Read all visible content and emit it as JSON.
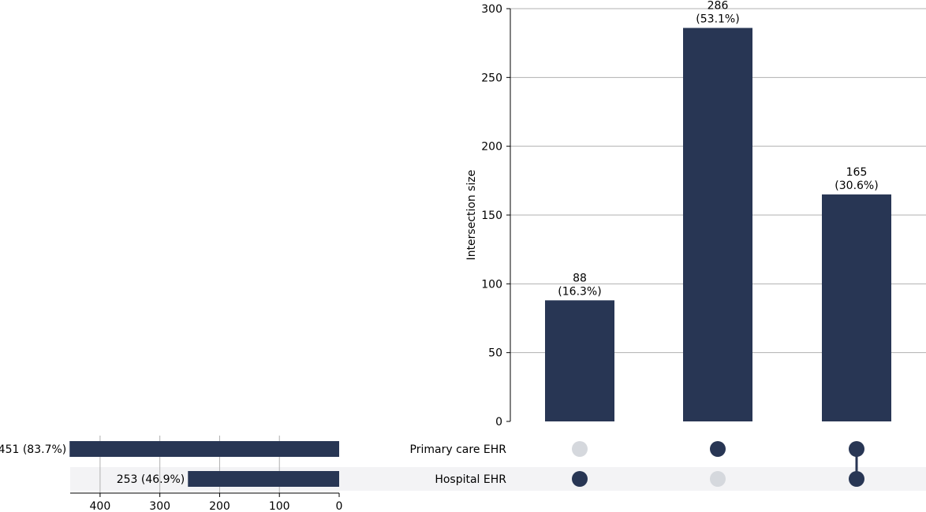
{
  "chart_data": {
    "type": "bar",
    "chart_kind": "upset",
    "ylabel": "Intersection size",
    "ylim": [
      0,
      300
    ],
    "yticks": [
      0,
      50,
      100,
      150,
      200,
      250,
      300
    ],
    "grid": true,
    "bar_color": "#283654",
    "inactive_dot_color": "#d5d8dd",
    "shading_color": "#f3f3f5",
    "sets": [
      {
        "name": "Primary care EHR",
        "size": 451,
        "label": "451 (83.7%)"
      },
      {
        "name": "Hospital EHR",
        "size": 253,
        "label": "253 (46.9%)"
      }
    ],
    "set_size_axis": {
      "xlim": [
        0,
        450
      ],
      "ticks": [
        400,
        300,
        200,
        100,
        0
      ]
    },
    "intersections": [
      {
        "members": [
          "Hospital EHR"
        ],
        "value": 88,
        "label_count": "88",
        "label_pct": "(16.3%)"
      },
      {
        "members": [
          "Primary care EHR"
        ],
        "value": 286,
        "label_count": "286",
        "label_pct": "(53.1%)"
      },
      {
        "members": [
          "Primary care EHR",
          "Hospital EHR"
        ],
        "value": 165,
        "label_count": "165",
        "label_pct": "(30.6%)"
      }
    ]
  }
}
